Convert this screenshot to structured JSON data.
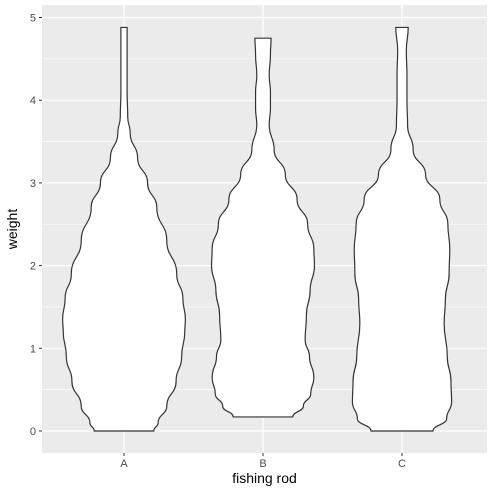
{
  "chart_data": {
    "type": "violin",
    "xlabel": "fishing rod",
    "ylabel": "weight",
    "ylim": [
      -0.25,
      5.05
    ],
    "yticks": [
      0,
      1,
      2,
      3,
      4,
      5
    ],
    "ytick_labels": [
      "0",
      "1",
      "2",
      "3",
      "4",
      "5"
    ],
    "categories": [
      "A",
      "B",
      "C"
    ],
    "grid": true,
    "panel_background": "#ebebeb",
    "grid_color": "#ffffff",
    "violin_fill": "#ffffff",
    "violin_stroke": "#333333",
    "series": [
      {
        "category": "A",
        "min": 0.0,
        "max": 4.88,
        "profile": [
          [
            0.0,
            0.48
          ],
          [
            0.1,
            0.55
          ],
          [
            0.3,
            0.69
          ],
          [
            0.6,
            0.84
          ],
          [
            0.9,
            0.93
          ],
          [
            1.2,
            0.98
          ],
          [
            1.35,
            0.99
          ],
          [
            1.6,
            0.95
          ],
          [
            1.9,
            0.85
          ],
          [
            2.3,
            0.69
          ],
          [
            2.7,
            0.53
          ],
          [
            3.0,
            0.38
          ],
          [
            3.3,
            0.22
          ],
          [
            3.6,
            0.1
          ],
          [
            3.8,
            0.06
          ],
          [
            4.1,
            0.05
          ],
          [
            4.4,
            0.05
          ],
          [
            4.7,
            0.05
          ],
          [
            4.88,
            0.05
          ]
        ]
      },
      {
        "category": "B",
        "min": 0.17,
        "max": 4.75,
        "profile": [
          [
            0.17,
            0.48
          ],
          [
            0.3,
            0.65
          ],
          [
            0.45,
            0.77
          ],
          [
            0.65,
            0.82
          ],
          [
            0.9,
            0.75
          ],
          [
            1.1,
            0.68
          ],
          [
            1.4,
            0.7
          ],
          [
            1.7,
            0.76
          ],
          [
            2.0,
            0.83
          ],
          [
            2.2,
            0.82
          ],
          [
            2.5,
            0.72
          ],
          [
            2.8,
            0.55
          ],
          [
            3.1,
            0.36
          ],
          [
            3.4,
            0.18
          ],
          [
            3.7,
            0.1
          ],
          [
            3.9,
            0.12
          ],
          [
            4.1,
            0.12
          ],
          [
            4.3,
            0.1
          ],
          [
            4.55,
            0.12
          ],
          [
            4.75,
            0.13
          ]
        ]
      },
      {
        "category": "C",
        "min": 0.0,
        "max": 4.88,
        "profile": [
          [
            0.0,
            0.5
          ],
          [
            0.15,
            0.72
          ],
          [
            0.35,
            0.8
          ],
          [
            0.6,
            0.79
          ],
          [
            0.9,
            0.73
          ],
          [
            1.3,
            0.68
          ],
          [
            1.6,
            0.7
          ],
          [
            1.9,
            0.76
          ],
          [
            2.2,
            0.77
          ],
          [
            2.5,
            0.74
          ],
          [
            2.8,
            0.61
          ],
          [
            3.1,
            0.38
          ],
          [
            3.4,
            0.18
          ],
          [
            3.7,
            0.09
          ],
          [
            4.0,
            0.08
          ],
          [
            4.3,
            0.08
          ],
          [
            4.6,
            0.07
          ],
          [
            4.88,
            0.1
          ]
        ]
      }
    ]
  }
}
